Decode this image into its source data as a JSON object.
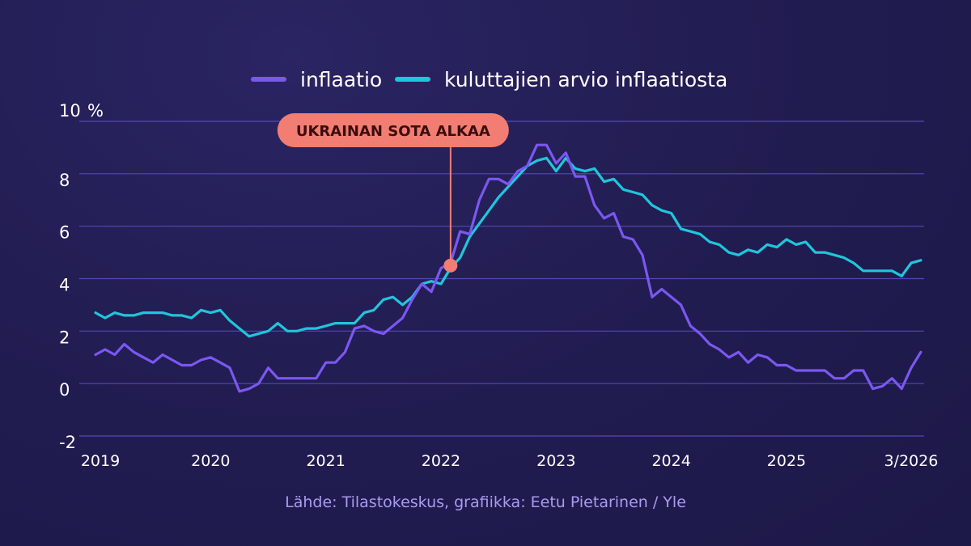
{
  "chart_data": {
    "type": "line",
    "ylabel": "",
    "y_unit": "%",
    "ylim": [
      -2,
      10
    ],
    "yticks": [
      -2,
      0,
      2,
      4,
      6,
      8,
      10
    ],
    "ytick_labels": [
      "-2",
      "0",
      "2",
      "4",
      "6",
      "8",
      "10"
    ],
    "x_tick_labels": [
      {
        "label": "2019",
        "date": "2019-01"
      },
      {
        "label": "2020",
        "date": "2020-01"
      },
      {
        "label": "2021",
        "date": "2021-01"
      },
      {
        "label": "2022",
        "date": "2022-01"
      },
      {
        "label": "2023",
        "date": "2023-01"
      },
      {
        "label": "2024",
        "date": "2024-01"
      },
      {
        "label": "2025",
        "date": "2025-01"
      },
      {
        "label": "3/2026",
        "date": "2026-03"
      }
    ],
    "grid": true,
    "legend_position": "top-center",
    "series": [
      {
        "name": "inflaatio",
        "color": "#7b57f2",
        "points": [
          [
            "2019-01",
            1.1
          ],
          [
            "2019-02",
            1.3
          ],
          [
            "2019-03",
            1.1
          ],
          [
            "2019-04",
            1.5
          ],
          [
            "2019-05",
            1.2
          ],
          [
            "2019-06",
            1.0
          ],
          [
            "2019-07",
            0.8
          ],
          [
            "2019-08",
            1.1
          ],
          [
            "2019-09",
            0.9
          ],
          [
            "2019-10",
            0.7
          ],
          [
            "2019-11",
            0.7
          ],
          [
            "2019-12",
            0.9
          ],
          [
            "2020-01",
            1.0
          ],
          [
            "2020-02",
            0.8
          ],
          [
            "2020-03",
            0.6
          ],
          [
            "2020-04",
            -0.3
          ],
          [
            "2020-05",
            -0.2
          ],
          [
            "2020-06",
            0.0
          ],
          [
            "2020-07",
            0.6
          ],
          [
            "2020-08",
            0.2
          ],
          [
            "2020-09",
            0.2
          ],
          [
            "2020-10",
            0.2
          ],
          [
            "2020-11",
            0.2
          ],
          [
            "2020-12",
            0.2
          ],
          [
            "2021-01",
            0.8
          ],
          [
            "2021-02",
            0.8
          ],
          [
            "2021-03",
            1.2
          ],
          [
            "2021-04",
            2.1
          ],
          [
            "2021-05",
            2.2
          ],
          [
            "2021-06",
            2.0
          ],
          [
            "2021-07",
            1.9
          ],
          [
            "2021-08",
            2.2
          ],
          [
            "2021-09",
            2.5
          ],
          [
            "2021-10",
            3.2
          ],
          [
            "2021-11",
            3.8
          ],
          [
            "2021-12",
            3.5
          ],
          [
            "2022-01",
            4.4
          ],
          [
            "2022-02",
            4.6
          ],
          [
            "2022-03",
            5.8
          ],
          [
            "2022-04",
            5.7
          ],
          [
            "2022-05",
            7.0
          ],
          [
            "2022-06",
            7.8
          ],
          [
            "2022-07",
            7.8
          ],
          [
            "2022-08",
            7.6
          ],
          [
            "2022-09",
            8.1
          ],
          [
            "2022-10",
            8.3
          ],
          [
            "2022-11",
            9.1
          ],
          [
            "2022-12",
            9.1
          ],
          [
            "2023-01",
            8.4
          ],
          [
            "2023-02",
            8.8
          ],
          [
            "2023-03",
            7.9
          ],
          [
            "2023-04",
            7.9
          ],
          [
            "2023-05",
            6.8
          ],
          [
            "2023-06",
            6.3
          ],
          [
            "2023-07",
            6.5
          ],
          [
            "2023-08",
            5.6
          ],
          [
            "2023-09",
            5.5
          ],
          [
            "2023-10",
            4.9
          ],
          [
            "2023-11",
            3.3
          ],
          [
            "2023-12",
            3.6
          ],
          [
            "2024-01",
            3.3
          ],
          [
            "2024-02",
            3.0
          ],
          [
            "2024-03",
            2.2
          ],
          [
            "2024-04",
            1.9
          ],
          [
            "2024-05",
            1.5
          ],
          [
            "2024-06",
            1.3
          ],
          [
            "2024-07",
            1.0
          ],
          [
            "2024-08",
            1.2
          ],
          [
            "2024-09",
            0.8
          ],
          [
            "2024-10",
            1.1
          ],
          [
            "2024-11",
            1.0
          ],
          [
            "2024-12",
            0.7
          ],
          [
            "2025-01",
            0.7
          ],
          [
            "2025-02",
            0.5
          ],
          [
            "2025-03",
            0.5
          ],
          [
            "2025-04",
            0.5
          ],
          [
            "2025-05",
            0.5
          ],
          [
            "2025-06",
            0.2
          ],
          [
            "2025-07",
            0.2
          ],
          [
            "2025-08",
            0.5
          ],
          [
            "2025-09",
            0.5
          ],
          [
            "2025-10",
            -0.2
          ],
          [
            "2025-11",
            -0.1
          ],
          [
            "2025-12",
            0.2
          ],
          [
            "2026-01",
            -0.2
          ],
          [
            "2026-02",
            0.6
          ],
          [
            "2026-03",
            1.2
          ]
        ]
      },
      {
        "name": "kuluttajien arvio inflaatiosta",
        "color": "#1fc6dc",
        "points": [
          [
            "2019-01",
            2.7
          ],
          [
            "2019-02",
            2.5
          ],
          [
            "2019-03",
            2.7
          ],
          [
            "2019-04",
            2.6
          ],
          [
            "2019-05",
            2.6
          ],
          [
            "2019-06",
            2.7
          ],
          [
            "2019-07",
            2.7
          ],
          [
            "2019-08",
            2.7
          ],
          [
            "2019-09",
            2.6
          ],
          [
            "2019-10",
            2.6
          ],
          [
            "2019-11",
            2.5
          ],
          [
            "2019-12",
            2.8
          ],
          [
            "2020-01",
            2.7
          ],
          [
            "2020-02",
            2.8
          ],
          [
            "2020-03",
            2.4
          ],
          [
            "2020-04",
            2.1
          ],
          [
            "2020-05",
            1.8
          ],
          [
            "2020-06",
            1.9
          ],
          [
            "2020-07",
            2.0
          ],
          [
            "2020-08",
            2.3
          ],
          [
            "2020-09",
            2.0
          ],
          [
            "2020-10",
            2.0
          ],
          [
            "2020-11",
            2.1
          ],
          [
            "2020-12",
            2.1
          ],
          [
            "2021-01",
            2.2
          ],
          [
            "2021-02",
            2.3
          ],
          [
            "2021-03",
            2.3
          ],
          [
            "2021-04",
            2.3
          ],
          [
            "2021-05",
            2.7
          ],
          [
            "2021-06",
            2.8
          ],
          [
            "2021-07",
            3.2
          ],
          [
            "2021-08",
            3.3
          ],
          [
            "2021-09",
            3.0
          ],
          [
            "2021-10",
            3.3
          ],
          [
            "2021-11",
            3.8
          ],
          [
            "2021-12",
            3.9
          ],
          [
            "2022-01",
            3.8
          ],
          [
            "2022-02",
            4.4
          ],
          [
            "2022-03",
            4.8
          ],
          [
            "2022-04",
            5.6
          ],
          [
            "2022-05",
            6.1
          ],
          [
            "2022-06",
            6.6
          ],
          [
            "2022-07",
            7.1
          ],
          [
            "2022-08",
            7.5
          ],
          [
            "2022-09",
            7.9
          ],
          [
            "2022-10",
            8.3
          ],
          [
            "2022-11",
            8.5
          ],
          [
            "2022-12",
            8.6
          ],
          [
            "2023-01",
            8.1
          ],
          [
            "2023-02",
            8.6
          ],
          [
            "2023-03",
            8.2
          ],
          [
            "2023-04",
            8.1
          ],
          [
            "2023-05",
            8.2
          ],
          [
            "2023-06",
            7.7
          ],
          [
            "2023-07",
            7.8
          ],
          [
            "2023-08",
            7.4
          ],
          [
            "2023-09",
            7.3
          ],
          [
            "2023-10",
            7.2
          ],
          [
            "2023-11",
            6.8
          ],
          [
            "2023-12",
            6.6
          ],
          [
            "2024-01",
            6.5
          ],
          [
            "2024-02",
            5.9
          ],
          [
            "2024-03",
            5.8
          ],
          [
            "2024-04",
            5.7
          ],
          [
            "2024-05",
            5.4
          ],
          [
            "2024-06",
            5.3
          ],
          [
            "2024-07",
            5.0
          ],
          [
            "2024-08",
            4.9
          ],
          [
            "2024-09",
            5.1
          ],
          [
            "2024-10",
            5.0
          ],
          [
            "2024-11",
            5.3
          ],
          [
            "2024-12",
            5.2
          ],
          [
            "2025-01",
            5.5
          ],
          [
            "2025-02",
            5.3
          ],
          [
            "2025-03",
            5.4
          ],
          [
            "2025-04",
            5.0
          ],
          [
            "2025-05",
            5.0
          ],
          [
            "2025-06",
            4.9
          ],
          [
            "2025-07",
            4.8
          ],
          [
            "2025-08",
            4.6
          ],
          [
            "2025-09",
            4.3
          ],
          [
            "2025-10",
            4.3
          ],
          [
            "2025-11",
            4.3
          ],
          [
            "2025-12",
            4.3
          ],
          [
            "2026-01",
            4.1
          ],
          [
            "2026-02",
            4.6
          ],
          [
            "2026-03",
            4.7
          ]
        ]
      }
    ],
    "annotations": [
      {
        "text": "UKRAINAN SOTA ALKAA",
        "date": "2022-02",
        "value": 4.5,
        "color": "#f27d72"
      }
    ]
  },
  "source": "Lähde: Tilastokeskus, grafiikka: Eetu Pietarinen / Yle"
}
